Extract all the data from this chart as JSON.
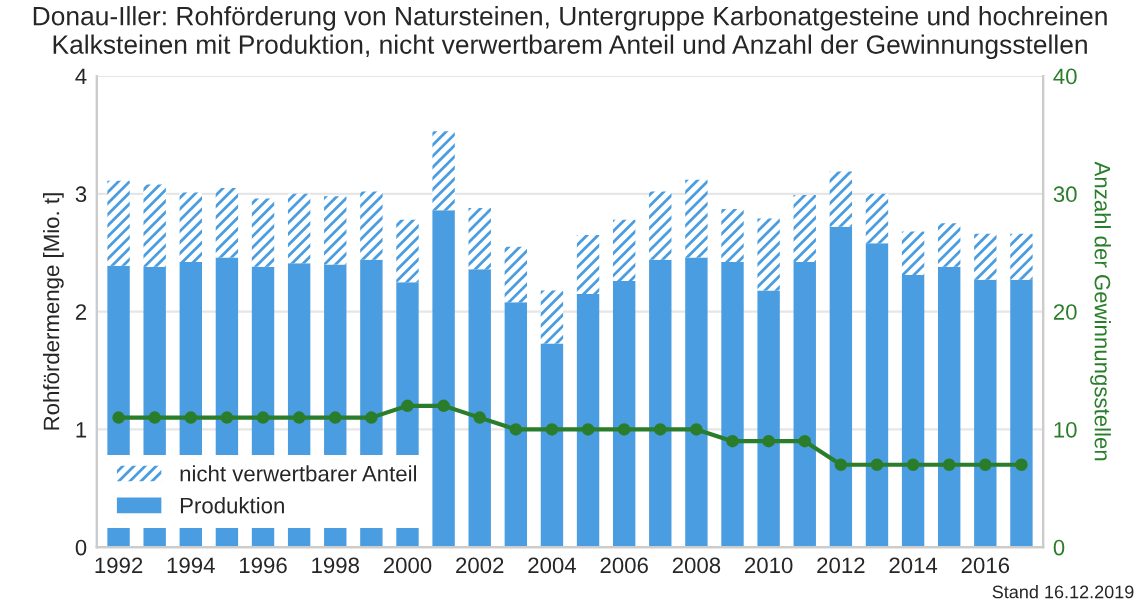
{
  "chart_data": {
    "type": "bar",
    "title": "Donau-Iller: Rohförderung von Natursteinen, Untergruppe Karbonatgesteine und hochreinen\nKalksteinen mit Produktion, nicht verwertbarem Anteil und Anzahl der Gewinnungsstellen",
    "ylabel": "Rohfördermenge [Mio. t]",
    "y2label": "Anzahl der Gewinnungsstellen",
    "categories": [
      "1992",
      null,
      "1994",
      null,
      "1996",
      null,
      "1998",
      null,
      "2000",
      null,
      "2002",
      null,
      "2004",
      null,
      "2006",
      null,
      "2008",
      null,
      "2010",
      null,
      "2012",
      null,
      "2014",
      null,
      "2016",
      null
    ],
    "stacked": true,
    "series": [
      {
        "name": "Produktion",
        "color": "#4a9de0",
        "values": [
          2.39,
          2.38,
          2.42,
          2.46,
          2.38,
          2.41,
          2.4,
          2.44,
          2.25,
          2.86,
          2.36,
          2.08,
          1.73,
          2.15,
          2.26,
          2.44,
          2.46,
          2.42,
          2.18,
          2.42,
          2.72,
          2.58,
          2.31,
          2.38,
          2.27,
          2.27
        ]
      },
      {
        "name": "nicht verwertbarer Anteil",
        "color": "#4a9de0",
        "values": [
          0.72,
          0.7,
          0.59,
          0.59,
          0.58,
          0.59,
          0.58,
          0.58,
          0.53,
          0.67,
          0.52,
          0.47,
          0.45,
          0.5,
          0.52,
          0.58,
          0.66,
          0.45,
          0.61,
          0.57,
          0.47,
          0.42,
          0.37,
          0.37,
          0.39,
          0.39
        ]
      },
      {
        "type": "line",
        "axis": "y2",
        "color": "#2a7d2a",
        "marker": "circle",
        "values": [
          11,
          11,
          11,
          11,
          11,
          11,
          11,
          11,
          12,
          12,
          11,
          10,
          10,
          10,
          10,
          10,
          10,
          9,
          9,
          9,
          7,
          7,
          7,
          7,
          7,
          7
        ]
      }
    ],
    "ylim": [
      0,
      4
    ],
    "yticks": [
      0,
      1,
      2,
      3,
      4
    ],
    "y2lim": [
      0,
      40
    ],
    "y2ticks": [
      0,
      10,
      20,
      30,
      40
    ],
    "grid": "y",
    "legend": "bottom left",
    "annotations": [
      "Stand 16.12.2019"
    ]
  }
}
